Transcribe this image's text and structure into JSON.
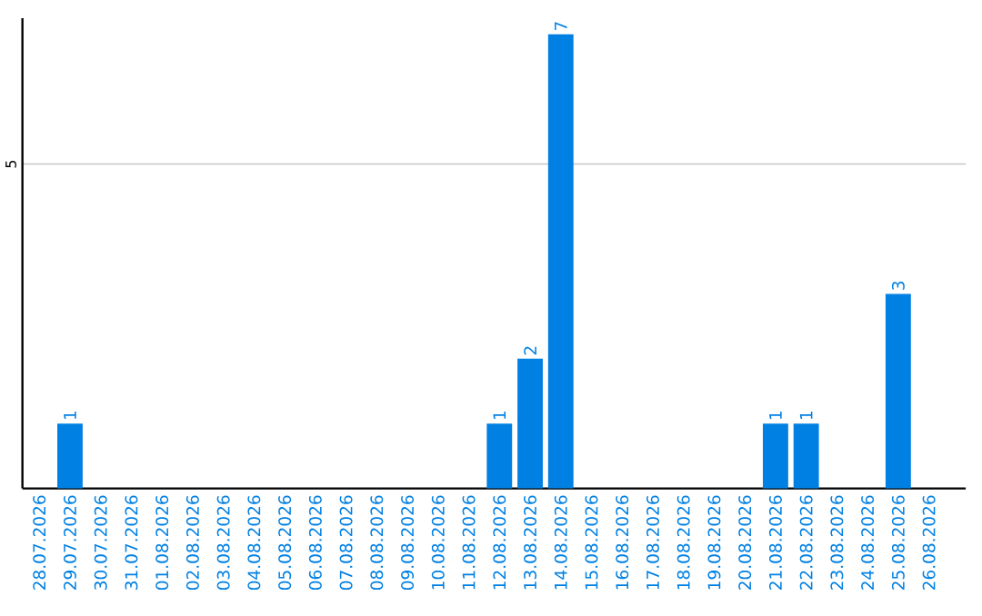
{
  "chart_data": {
    "type": "bar",
    "categories": [
      "28.07.2026",
      "29.07.2026",
      "30.07.2026",
      "31.07.2026",
      "01.08.2026",
      "02.08.2026",
      "03.08.2026",
      "04.08.2026",
      "05.08.2026",
      "06.08.2026",
      "07.08.2026",
      "08.08.2026",
      "09.08.2026",
      "10.08.2026",
      "11.08.2026",
      "12.08.2026",
      "13.08.2026",
      "14.08.2026",
      "15.08.2026",
      "16.08.2026",
      "17.08.2026",
      "18.08.2026",
      "19.08.2026",
      "20.08.2026",
      "21.08.2026",
      "22.08.2026",
      "23.08.2026",
      "24.08.2026",
      "25.08.2026",
      "26.08.2026"
    ],
    "values": [
      0,
      1,
      0,
      0,
      0,
      0,
      0,
      0,
      0,
      0,
      0,
      0,
      0,
      0,
      0,
      1,
      2,
      7,
      0,
      0,
      0,
      0,
      0,
      0,
      1,
      1,
      0,
      0,
      3,
      0
    ],
    "value_labels": [
      null,
      "1",
      null,
      null,
      null,
      null,
      null,
      null,
      null,
      null,
      null,
      null,
      null,
      null,
      null,
      "1",
      "2",
      "7",
      null,
      null,
      null,
      null,
      null,
      null,
      "1",
      "1",
      null,
      null,
      "3",
      null
    ],
    "color": "#0080e3",
    "ylim": [
      0,
      7.25
    ],
    "yticks": [
      5
    ],
    "grid": "y"
  }
}
